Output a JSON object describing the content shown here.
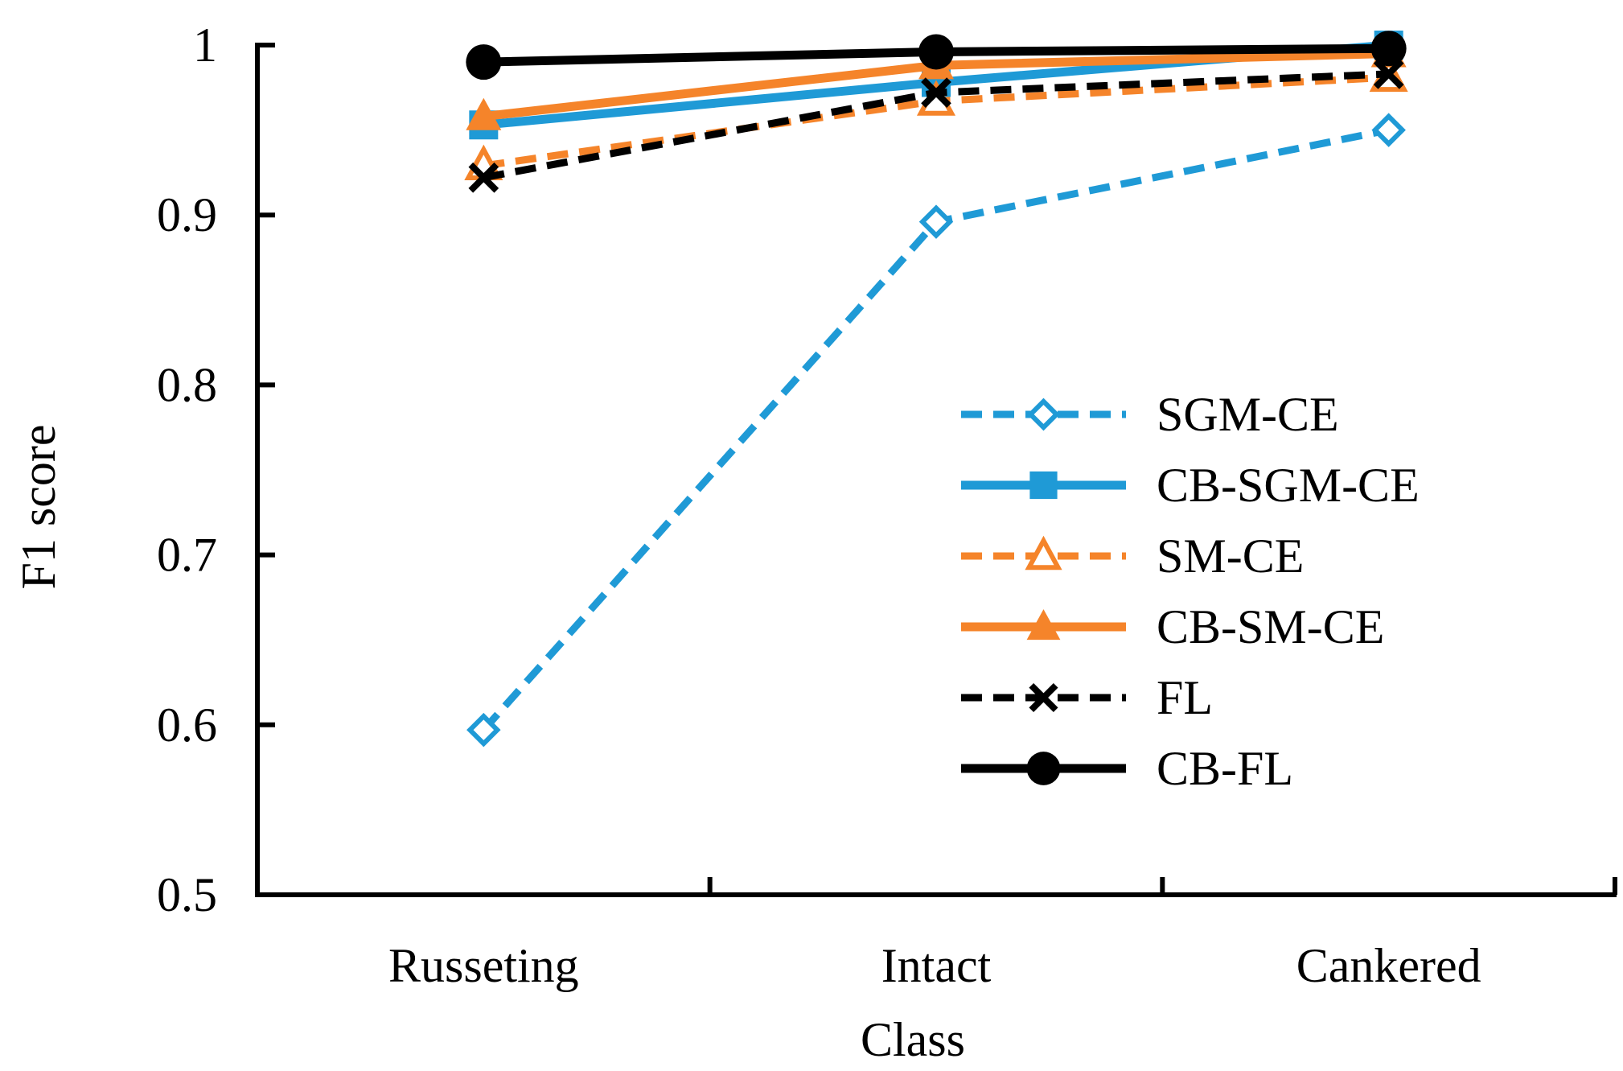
{
  "chart_data": {
    "type": "line",
    "title": "",
    "xlabel": "Class",
    "ylabel": "F1 score",
    "categories": [
      "Russeting",
      "Intact",
      "Cankered"
    ],
    "ylim": [
      0.5,
      1
    ],
    "yticks": [
      0.5,
      0.6,
      0.7,
      0.8,
      0.9,
      1
    ],
    "ytick_labels": [
      "0.5",
      "0.6",
      "0.7",
      "0.8",
      "0.9",
      "1"
    ],
    "grid": false,
    "legend_position": "center-right",
    "series": [
      {
        "name": "SGM-CE",
        "values": [
          0.597,
          0.896,
          0.95
        ],
        "color": "#1f9ad6",
        "dashed": true,
        "marker": "diamond-open"
      },
      {
        "name": "CB-SGM-CE",
        "values": [
          0.953,
          0.978,
          1.0
        ],
        "color": "#1f9ad6",
        "dashed": false,
        "marker": "square"
      },
      {
        "name": "SM-CE",
        "values": [
          0.929,
          0.967,
          0.981
        ],
        "color": "#f5842a",
        "dashed": true,
        "marker": "triangle-open"
      },
      {
        "name": "CB-SM-CE",
        "values": [
          0.958,
          0.988,
          0.995
        ],
        "color": "#f5842a",
        "dashed": false,
        "marker": "triangle"
      },
      {
        "name": "FL",
        "values": [
          0.922,
          0.972,
          0.983
        ],
        "color": "#000000",
        "dashed": true,
        "marker": "x"
      },
      {
        "name": "CB-FL",
        "values": [
          0.99,
          0.996,
          0.998
        ],
        "color": "#000000",
        "dashed": false,
        "marker": "circle"
      }
    ]
  }
}
